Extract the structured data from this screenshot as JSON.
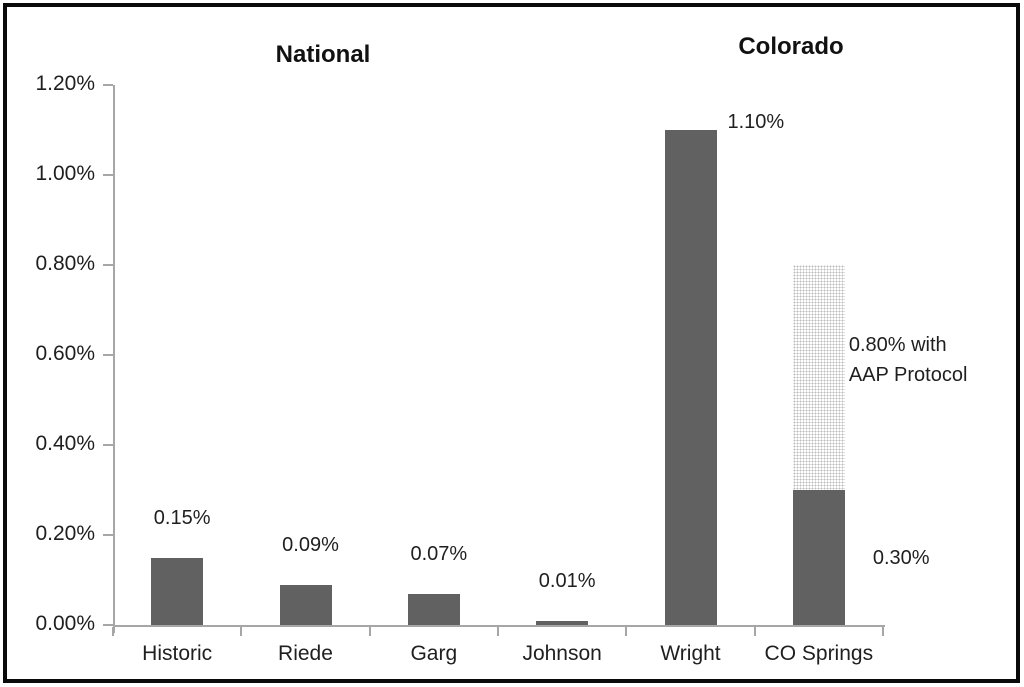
{
  "chart_data": {
    "type": "bar",
    "group_titles": [
      {
        "label": "National"
      },
      {
        "label": "Colorado"
      }
    ],
    "y_axis": {
      "min": 0,
      "max": 1.2,
      "step": 0.2,
      "tick_labels": [
        "0.00%",
        "0.20%",
        "0.40%",
        "0.60%",
        "0.80%",
        "1.00%",
        "1.20%"
      ],
      "grid": false
    },
    "categories": [
      "Historic",
      "Riede",
      "Garg",
      "Johnson",
      "Wright",
      "CO Springs"
    ],
    "bars": [
      {
        "category": "Historic",
        "value": 0.15,
        "label": "0.15%",
        "label_position": "above"
      },
      {
        "category": "Riede",
        "value": 0.09,
        "label": "0.09%",
        "label_position": "above"
      },
      {
        "category": "Garg",
        "value": 0.07,
        "label": "0.07%",
        "label_position": "above"
      },
      {
        "category": "Johnson",
        "value": 0.01,
        "label": "0.01%",
        "label_position": "above"
      },
      {
        "category": "Wright",
        "value": 1.1,
        "label": "1.10%",
        "label_position": "right-of-top"
      },
      {
        "category": "CO Springs",
        "value": 0.3,
        "label": "0.30%",
        "label_position": "right-of-solid",
        "stacked_extra": {
          "top_value": 0.8,
          "added_value": 0.5,
          "style": "dotted",
          "label_lines": [
            "0.80% with",
            "AAP Protocol"
          ]
        }
      }
    ],
    "colors": {
      "bar": "#616161",
      "dotted_dot": "#bdbdbd",
      "axis": "#a6a6a6",
      "text": "#1f1f1f",
      "frame": "#0a0a0a"
    },
    "legend": "none",
    "title": "",
    "xlabel": "",
    "ylabel": ""
  }
}
